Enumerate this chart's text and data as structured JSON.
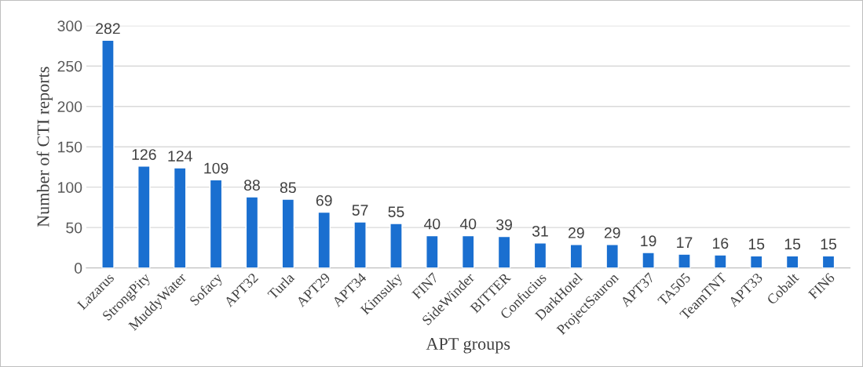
{
  "chart_data": {
    "type": "bar",
    "categories": [
      "Lazarus",
      "StrongPity",
      "MuddyWater",
      "Sofacy",
      "APT32",
      "Turla",
      "APT29",
      "APT34",
      "Kimsuky",
      "FIN7",
      "SideWinder",
      "BITTER",
      "Confucius",
      "DarkHotel",
      "ProjectSauron",
      "APT37",
      "TA505",
      "TeamTNT",
      "APT33",
      "Cobalt",
      "FIN6"
    ],
    "values": [
      282,
      126,
      124,
      109,
      88,
      85,
      69,
      57,
      55,
      40,
      40,
      39,
      31,
      29,
      29,
      19,
      17,
      16,
      15,
      15,
      15
    ],
    "color": "#1a6fd0",
    "xlabel": "APT groups",
    "ylabel": "Number of CTI reports",
    "ylim": [
      0,
      300
    ],
    "yticks": [
      0,
      50,
      100,
      150,
      200,
      250,
      300
    ],
    "grid": "y",
    "data_labels": true
  }
}
